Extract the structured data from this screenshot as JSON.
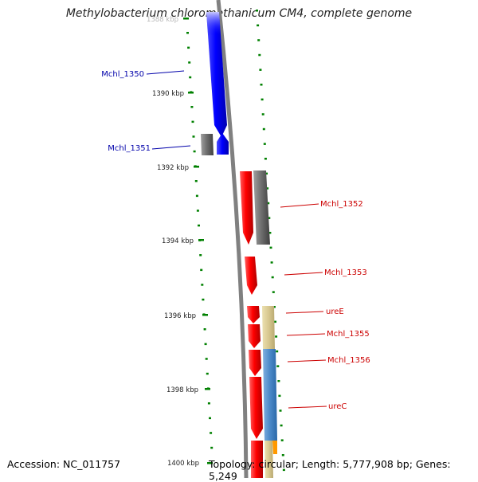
{
  "title": "Methylobacterium chloromethanicum CM4, complete genome",
  "footer": {
    "accession": "Accession: NC_011757",
    "topology": "Topology: circular; Length: 5,777,908 bp; Genes: 5,249"
  },
  "ticks": [
    "1388 kbp",
    "1390 kbp",
    "1392 kbp",
    "1394 kbp",
    "1396 kbp",
    "1398 kbp",
    "1400 kbp"
  ],
  "gene_labels": [
    {
      "text": "Mchl_1350",
      "color": "#0000aa"
    },
    {
      "text": "Mchl_1351",
      "color": "#0000aa"
    },
    {
      "text": "Mchl_1352",
      "color": "#cc0000"
    },
    {
      "text": "Mchl_1353",
      "color": "#cc0000"
    },
    {
      "text": "ureE",
      "color": "#cc0000"
    },
    {
      "text": "Mchl_1355",
      "color": "#cc0000"
    },
    {
      "text": "Mchl_1356",
      "color": "#cc0000"
    },
    {
      "text": "ureC",
      "color": "#cc0000"
    }
  ],
  "colors": {
    "backbone": "#808080",
    "forward_gene": "#ff0000",
    "reverse_gene": "#0000ff",
    "grey_feature": "#707070",
    "tan_feature": "#d8c890",
    "blue_feature": "#4a88c8",
    "orange_feature": "#ff9900",
    "tick": "#008000",
    "label_blue": "#0000aa",
    "label_red": "#cc0000"
  }
}
